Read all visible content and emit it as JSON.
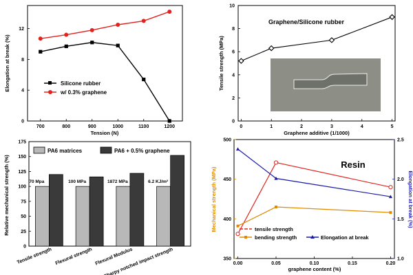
{
  "chart_data": [
    {
      "type": "line",
      "x": [
        700,
        800,
        900,
        1000,
        1100,
        1200
      ],
      "xlabel": "Tension (N)",
      "ylabel": "Elongation at break (%)",
      "xlim": [
        650,
        1250
      ],
      "ylim": [
        0,
        15
      ],
      "xticks": [
        "700",
        "800",
        "900",
        "1000",
        "1100",
        "1200"
      ],
      "yticks": [
        "0",
        "4",
        "8",
        "12"
      ],
      "legend_position": "bottom-left",
      "series": [
        {
          "name": "Silicone rubber",
          "values": [
            9.0,
            9.7,
            10.2,
            9.8,
            5.4,
            0.0
          ],
          "color": "#000000",
          "marker": "square"
        },
        {
          "name": "w/ 0.3% graphene",
          "values": [
            10.7,
            11.2,
            11.8,
            12.5,
            13.0,
            14.2
          ],
          "color": "#e0231e",
          "marker": "circle"
        }
      ]
    },
    {
      "type": "line",
      "title": "Graphene/Silicone rubber",
      "x": [
        0,
        1,
        3,
        5
      ],
      "xlabel": "Graphene additive (1/1000)",
      "ylabel": "Tensile strength (MPa)",
      "xlim": [
        -0.1,
        5.1
      ],
      "ylim": [
        0,
        10
      ],
      "xticks": [
        "0",
        "1",
        "2",
        "3",
        "4",
        "5"
      ],
      "yticks": [
        "0",
        "2",
        "4",
        "6",
        "8",
        "10"
      ],
      "series": [
        {
          "name": "",
          "values": [
            5.2,
            6.3,
            7.0,
            9.0
          ],
          "color": "#000000",
          "marker": "diamond"
        }
      ]
    },
    {
      "type": "bar",
      "categories": [
        "Tensile strength",
        "Flexural strength",
        "Flexural Modulus",
        "Charpy notched impact strength"
      ],
      "annotations": [
        "70 Mpa",
        "100 MPa",
        "1872 MPa",
        "6.2 KJ/m²"
      ],
      "ylabel": "Relative mechanical strength (%)",
      "ylim": [
        0,
        175
      ],
      "yticks": [
        "0",
        "25",
        "50",
        "75",
        "100",
        "125",
        "150",
        "175"
      ],
      "legend_position": "top",
      "series": [
        {
          "name": "PA6 matrices",
          "values": [
            100,
            100,
            100,
            100
          ],
          "color": "#b8b8b8"
        },
        {
          "name": "PA6 + 0.5% graphene",
          "values": [
            120,
            116,
            122,
            152
          ],
          "color": "#3a3a3a"
        }
      ]
    },
    {
      "type": "line",
      "title": "Resin",
      "x": [
        0.0,
        0.05,
        0.2
      ],
      "xlabel": "graphene content (%)",
      "ylabel": "Mechanical strength (MPa)",
      "ylabel_right": "Elongation at break (%)",
      "xlim": [
        -0.005,
        0.205
      ],
      "ylim": [
        350,
        500
      ],
      "ylim_right": [
        1.0,
        2.5
      ],
      "xticks": [
        "0.00",
        "0.05",
        "0.10",
        "0.15",
        "0.20"
      ],
      "yticks": [
        "350",
        "400",
        "450",
        "500"
      ],
      "yticks_right": [
        "1.0",
        "1.5",
        "2.0",
        "2.5"
      ],
      "left_axis_color": "#e08a00",
      "right_axis_color": "#1a1aa8",
      "legend_position": "bottom",
      "series": [
        {
          "name": "tensile strength",
          "values": [
            381,
            471,
            440
          ],
          "color": "#e0231e",
          "marker": "circle-open",
          "axis": "left"
        },
        {
          "name": "bending strength",
          "values": [
            391,
            415,
            408
          ],
          "color": "#e08a00",
          "marker": "square",
          "axis": "left"
        },
        {
          "name": "Elongation at break",
          "values": [
            2.38,
            2.01,
            1.78
          ],
          "color": "#1a1aa8",
          "marker": "triangle",
          "axis": "right"
        }
      ]
    }
  ]
}
